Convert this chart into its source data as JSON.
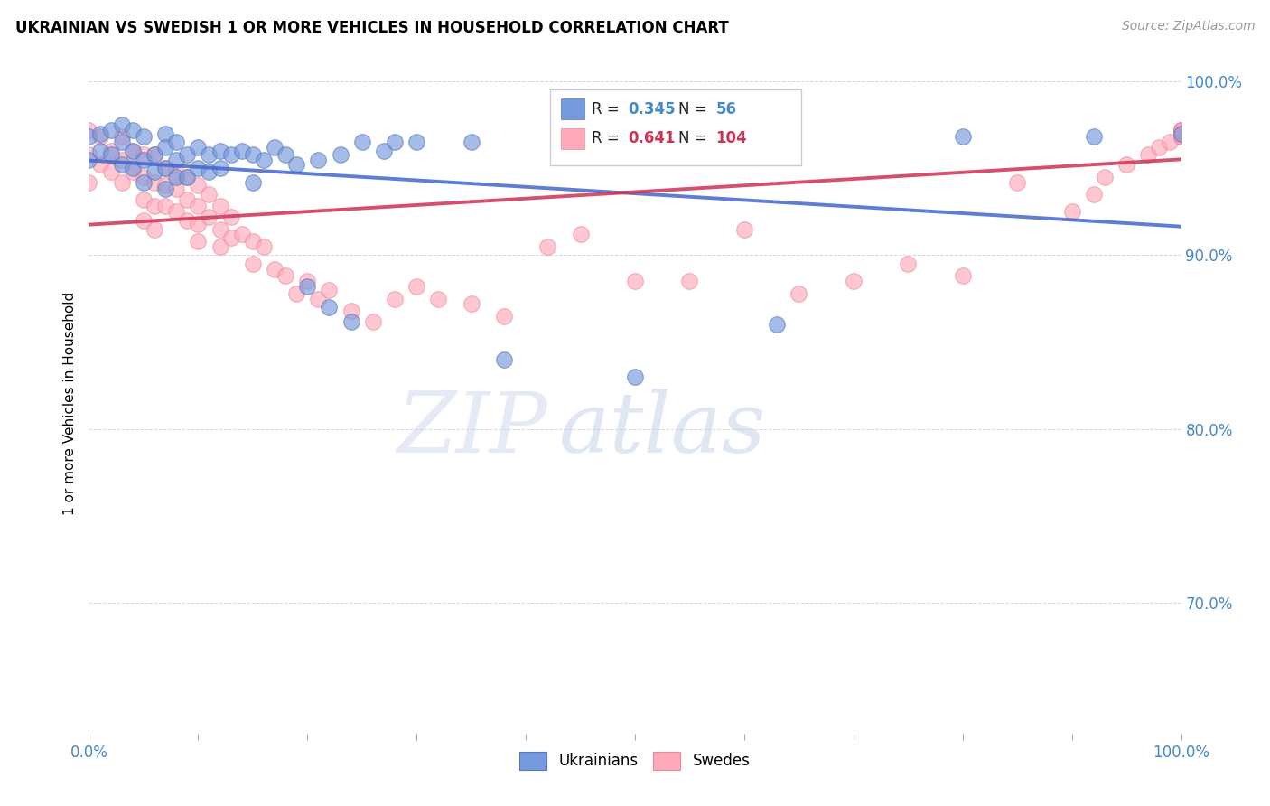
{
  "title": "UKRAINIAN VS SWEDISH 1 OR MORE VEHICLES IN HOUSEHOLD CORRELATION CHART",
  "source": "Source: ZipAtlas.com",
  "ylabel": "1 or more Vehicles in Household",
  "xlim": [
    0.0,
    1.0
  ],
  "ylim": [
    0.625,
    1.005
  ],
  "watermark_zip": "ZIP",
  "watermark_atlas": "atlas",
  "blue_color": "#7799dd",
  "blue_edge": "#5577bb",
  "pink_color": "#ffaabb",
  "pink_edge": "#ee8899",
  "trend_blue": "#4466cc",
  "trend_pink": "#cc3355",
  "legend_r1": "0.345",
  "legend_n1": "56",
  "legend_r2": "0.641",
  "legend_n2": "104",
  "ukr_x": [
    0.0,
    0.0,
    0.01,
    0.01,
    0.02,
    0.02,
    0.03,
    0.03,
    0.03,
    0.04,
    0.04,
    0.04,
    0.05,
    0.05,
    0.05,
    0.06,
    0.06,
    0.07,
    0.07,
    0.07,
    0.07,
    0.08,
    0.08,
    0.08,
    0.09,
    0.09,
    0.1,
    0.1,
    0.11,
    0.11,
    0.12,
    0.12,
    0.13,
    0.14,
    0.15,
    0.15,
    0.16,
    0.17,
    0.18,
    0.19,
    0.2,
    0.21,
    0.22,
    0.23,
    0.24,
    0.25,
    0.27,
    0.28,
    0.3,
    0.35,
    0.38,
    0.5,
    0.63,
    0.8,
    0.92,
    1.0
  ],
  "ukr_y": [
    0.968,
    0.955,
    0.97,
    0.96,
    0.972,
    0.958,
    0.975,
    0.965,
    0.952,
    0.972,
    0.96,
    0.95,
    0.968,
    0.955,
    0.942,
    0.958,
    0.948,
    0.97,
    0.962,
    0.95,
    0.938,
    0.965,
    0.955,
    0.945,
    0.958,
    0.945,
    0.962,
    0.95,
    0.958,
    0.948,
    0.96,
    0.95,
    0.958,
    0.96,
    0.958,
    0.942,
    0.955,
    0.962,
    0.958,
    0.952,
    0.882,
    0.955,
    0.87,
    0.958,
    0.862,
    0.965,
    0.96,
    0.965,
    0.965,
    0.965,
    0.84,
    0.83,
    0.86,
    0.968,
    0.968,
    0.97
  ],
  "swe_x": [
    0.0,
    0.0,
    0.0,
    0.01,
    0.01,
    0.02,
    0.02,
    0.03,
    0.03,
    0.03,
    0.04,
    0.04,
    0.05,
    0.05,
    0.05,
    0.05,
    0.06,
    0.06,
    0.06,
    0.06,
    0.07,
    0.07,
    0.07,
    0.08,
    0.08,
    0.08,
    0.09,
    0.09,
    0.09,
    0.1,
    0.1,
    0.1,
    0.1,
    0.11,
    0.11,
    0.12,
    0.12,
    0.12,
    0.13,
    0.13,
    0.14,
    0.15,
    0.15,
    0.16,
    0.17,
    0.18,
    0.19,
    0.2,
    0.21,
    0.22,
    0.24,
    0.26,
    0.28,
    0.3,
    0.32,
    0.35,
    0.38,
    0.42,
    0.45,
    0.5,
    0.55,
    0.6,
    0.65,
    0.7,
    0.75,
    0.8,
    0.85,
    0.9,
    0.92,
    0.93,
    0.95,
    0.97,
    0.98,
    0.99,
    1.0,
    1.0,
    1.0,
    1.0,
    1.0,
    1.0,
    1.0,
    1.0,
    1.0,
    1.0,
    1.0,
    1.0,
    1.0,
    1.0,
    1.0,
    1.0,
    1.0,
    1.0,
    1.0,
    1.0,
    1.0,
    1.0,
    1.0,
    1.0,
    1.0,
    1.0,
    1.0,
    1.0,
    1.0,
    1.0
  ],
  "swe_y": [
    0.972,
    0.958,
    0.942,
    0.968,
    0.952,
    0.96,
    0.948,
    0.968,
    0.955,
    0.942,
    0.96,
    0.948,
    0.958,
    0.945,
    0.932,
    0.92,
    0.958,
    0.942,
    0.928,
    0.915,
    0.95,
    0.94,
    0.928,
    0.948,
    0.938,
    0.925,
    0.945,
    0.932,
    0.92,
    0.94,
    0.928,
    0.918,
    0.908,
    0.935,
    0.922,
    0.928,
    0.915,
    0.905,
    0.922,
    0.91,
    0.912,
    0.908,
    0.895,
    0.905,
    0.892,
    0.888,
    0.878,
    0.885,
    0.875,
    0.88,
    0.868,
    0.862,
    0.875,
    0.882,
    0.875,
    0.872,
    0.865,
    0.905,
    0.912,
    0.885,
    0.885,
    0.915,
    0.878,
    0.885,
    0.895,
    0.888,
    0.942,
    0.925,
    0.935,
    0.945,
    0.952,
    0.958,
    0.962,
    0.965,
    0.968,
    0.968,
    0.97,
    0.97,
    0.97,
    0.972,
    0.972,
    0.972,
    0.97,
    0.972,
    0.97,
    0.968,
    0.972,
    0.97,
    0.97,
    0.968,
    0.968,
    0.97,
    0.972,
    0.968,
    0.97,
    0.972,
    0.97,
    0.968,
    0.97,
    0.972,
    0.968,
    0.972,
    0.97,
    0.972
  ]
}
